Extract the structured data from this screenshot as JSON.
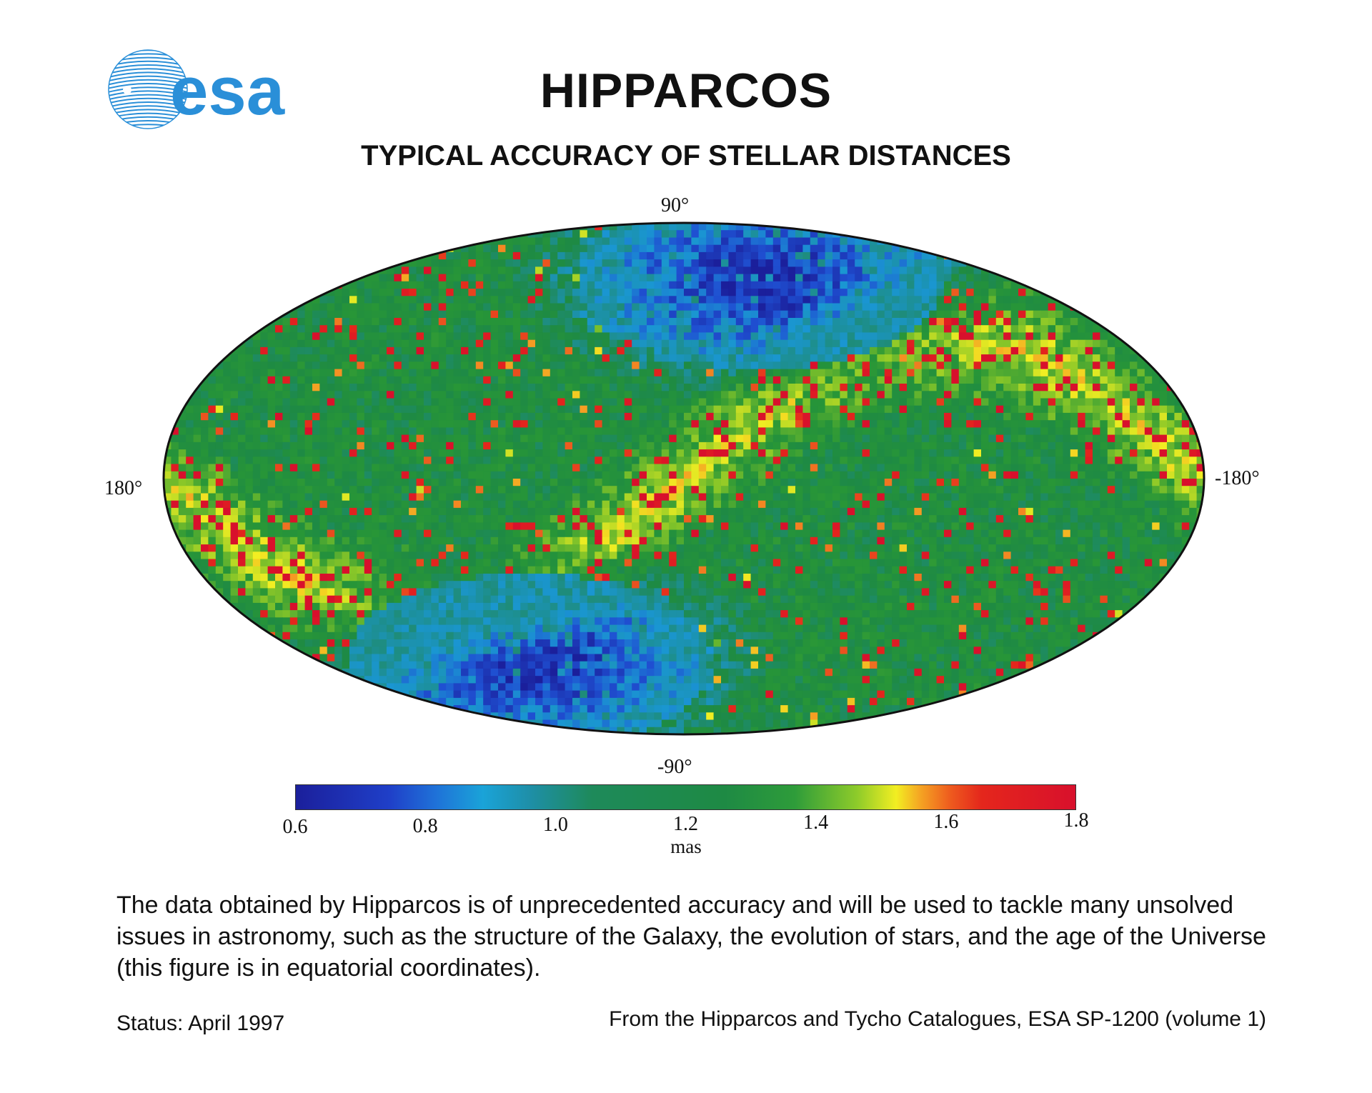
{
  "header": {
    "logo_text": "esa",
    "title": "HIPPARCOS",
    "subtitle": "TYPICAL ACCURACY OF STELLAR DISTANCES"
  },
  "colors": {
    "esa_blue": "#2a8fd8",
    "low": "#1b1f9b",
    "mid": "#1e8a44",
    "high": "#d8102c"
  },
  "chart_data": {
    "type": "heatmap",
    "projection": "Hammer-Aitoff all-sky, equatorial coordinates",
    "coordinate_labels": {
      "top": "90°",
      "bottom": "-90°",
      "left": "180°",
      "right": "-180°"
    },
    "colorbar": {
      "ticks": [
        "0.6",
        "0.8",
        "1.0",
        "1.2",
        "1.4",
        "1.6",
        "1.8"
      ],
      "range": [
        0.6,
        1.8
      ],
      "unit": "mas"
    },
    "description_of_field": {
      "lowest_values_regions": "ecliptic poles (upper centre-right and lower centre-left), ~0.6–0.8 mas",
      "highest_values_regions": "band along the ecliptic, ~1.4–1.8 mas",
      "typical_value": 1.1
    }
  },
  "text": {
    "description": "The data obtained by Hipparcos is of unprecedented accuracy and will be used to tackle many unsolved issues in astronomy, such as the structure of the Galaxy, the evolution of stars, and the age of the Universe  (this figure is in equatorial coordinates).",
    "status": "Status: April 1997",
    "source": "From the Hipparcos and Tycho Catalogues, ESA SP-1200 (volume 1)"
  }
}
